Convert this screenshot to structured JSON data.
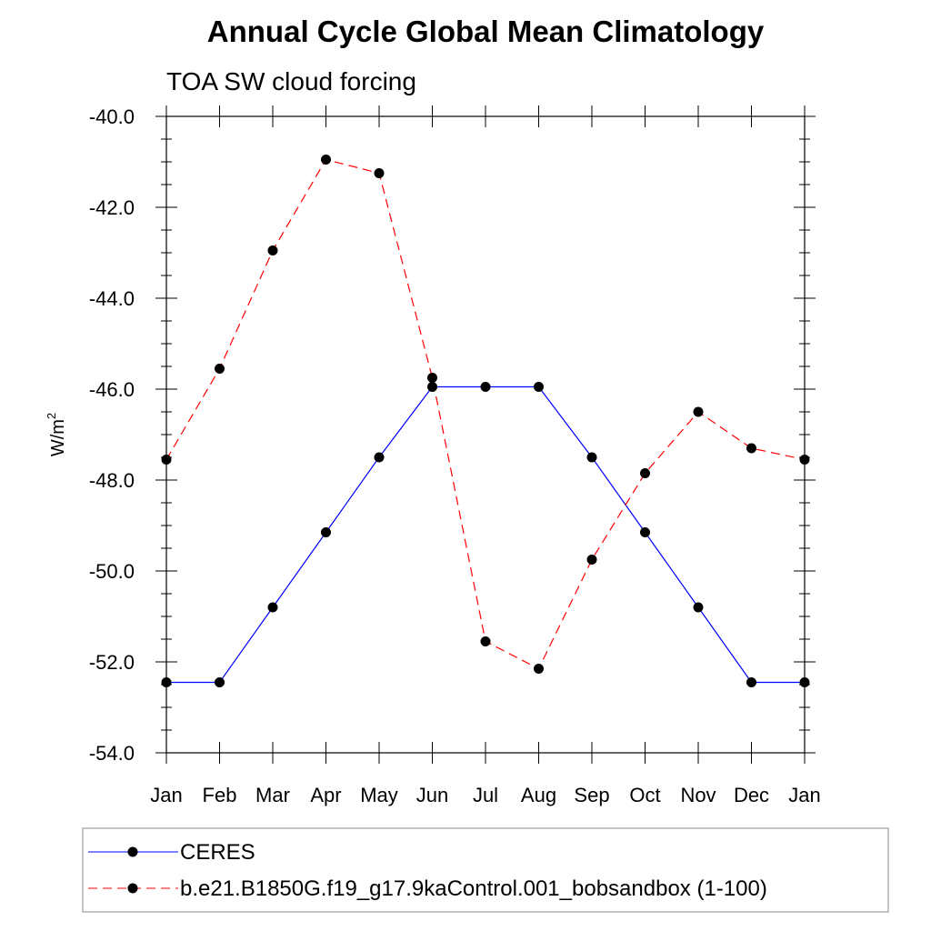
{
  "chart_data": {
    "type": "line",
    "title": "Annual Cycle Global Mean Climatology",
    "subtitle": "TOA SW cloud forcing",
    "ylabel": "W/m",
    "ylabel_superscript": "2",
    "xlabel": "",
    "categories": [
      "Jan",
      "Feb",
      "Mar",
      "Apr",
      "May",
      "Jun",
      "Jul",
      "Aug",
      "Sep",
      "Oct",
      "Nov",
      "Dec",
      "Jan"
    ],
    "ylim": [
      -54.0,
      -40.0
    ],
    "yticks": [
      -40.0,
      -42.0,
      -44.0,
      -46.0,
      -48.0,
      -50.0,
      -52.0,
      -54.0
    ],
    "ytick_labels": [
      "-40.0",
      "-42.0",
      "-44.0",
      "-46.0",
      "-48.0",
      "-50.0",
      "-52.0",
      "-54.0"
    ],
    "grid": false,
    "legend_position": "bottom",
    "series": [
      {
        "name": "CERES",
        "color": "#0000ff",
        "line_style": "solid",
        "marker": "filled-circle",
        "values": [
          -52.45,
          -52.45,
          -50.8,
          -49.15,
          -47.5,
          -45.95,
          -45.95,
          -45.95,
          -47.5,
          -49.15,
          -50.8,
          -52.45,
          -52.45
        ]
      },
      {
        "name": "b.e21.B1850G.f19_g17.9kaControl.001_bobsandbox (1-100)",
        "color": "#ff0000",
        "line_style": "dashed",
        "marker": "filled-circle",
        "values": [
          -47.55,
          -45.55,
          -42.95,
          -40.95,
          -41.25,
          -45.75,
          -51.55,
          -52.15,
          -49.75,
          -47.85,
          -46.5,
          -47.3,
          -47.55
        ]
      }
    ]
  }
}
